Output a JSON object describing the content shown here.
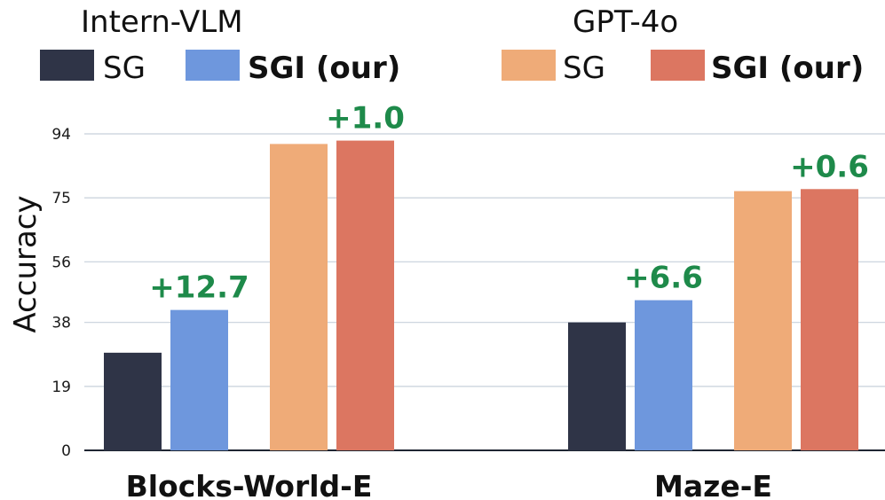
{
  "chart_data": {
    "type": "bar",
    "ylabel": "Accuracy",
    "ylim": [
      0,
      100
    ],
    "yticks": [
      0,
      19,
      38,
      56,
      75,
      94
    ],
    "grid": true,
    "categories": [
      "Blocks-World-E",
      "Maze-E"
    ],
    "series": [
      {
        "name": "SG",
        "model": "Intern-VLM",
        "color": "#2f3447",
        "values": [
          29.0,
          38.0
        ]
      },
      {
        "name": "SGI (our)",
        "model": "Intern-VLM",
        "color": "#6e97dd",
        "values": [
          41.7,
          44.6
        ]
      },
      {
        "name": "SG",
        "model": "GPT-4o",
        "color": "#efab78",
        "values": [
          91.0,
          77.0
        ]
      },
      {
        "name": "SGI (our)",
        "model": "GPT-4o",
        "color": "#dc7661",
        "values": [
          92.0,
          77.6
        ]
      }
    ],
    "legend_groups": [
      {
        "title": "Intern-VLM",
        "items": [
          {
            "label": "SG",
            "series": 0,
            "bold": false
          },
          {
            "label": "SGI (our)",
            "series": 1,
            "bold": true
          }
        ]
      },
      {
        "title": "GPT-4o",
        "items": [
          {
            "label": "SG",
            "series": 2,
            "bold": false
          },
          {
            "label": "SGI (our)",
            "series": 3,
            "bold": true
          }
        ]
      }
    ],
    "annotations": [
      {
        "text": "+12.7",
        "category": 0,
        "series": 1
      },
      {
        "text": "+1.0",
        "category": 0,
        "series": 3
      },
      {
        "text": "+6.6",
        "category": 1,
        "series": 1
      },
      {
        "text": "+0.6",
        "category": 1,
        "series": 3
      }
    ],
    "annotation_color": "#1e8a4a",
    "legend_position": "top"
  }
}
